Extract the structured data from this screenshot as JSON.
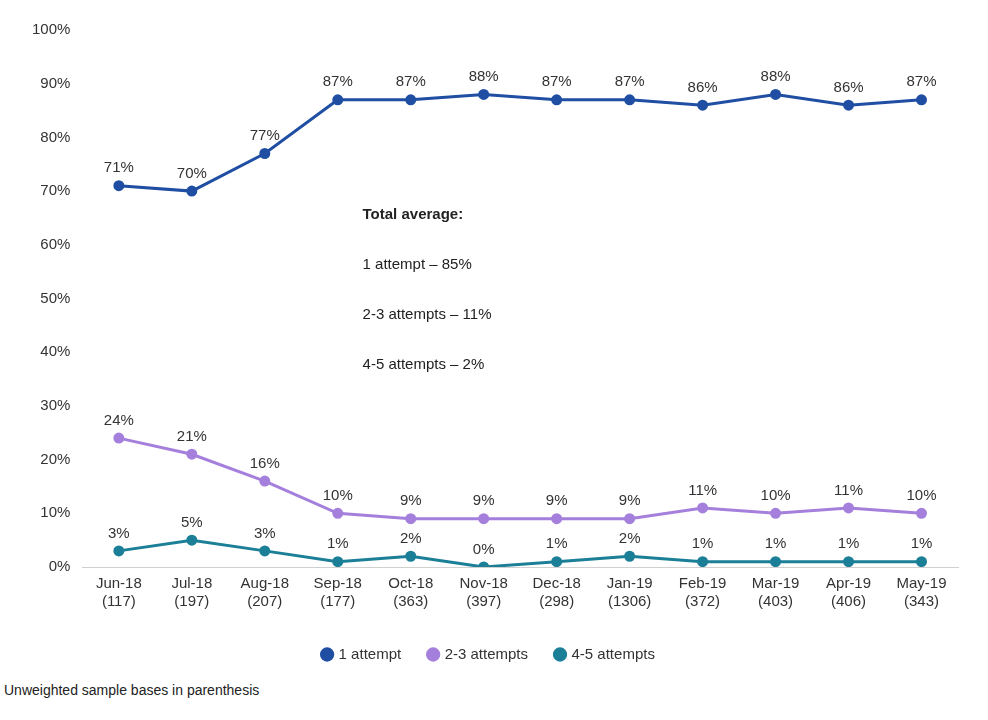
{
  "chart_data": {
    "type": "line",
    "categories": [
      [
        "Jun-18",
        "(117)"
      ],
      [
        "Jul-18",
        "(197)"
      ],
      [
        "Aug-18",
        "(207)"
      ],
      [
        "Sep-18",
        "(177)"
      ],
      [
        "Oct-18",
        "(363)"
      ],
      [
        "Nov-18",
        "(397)"
      ],
      [
        "Dec-18",
        "(298)"
      ],
      [
        "Jan-19",
        "(1306)"
      ],
      [
        "Feb-19",
        "(372)"
      ],
      [
        "Mar-19",
        "(403)"
      ],
      [
        "Apr-19",
        "(406)"
      ],
      [
        "May-19",
        "(343)"
      ]
    ],
    "series": [
      {
        "name": "1 attempt",
        "color": "#1f4ea3",
        "marker": "circle",
        "values": [
          71,
          70,
          77,
          87,
          87,
          88,
          87,
          87,
          86,
          88,
          86,
          87
        ],
        "value_labels": [
          "71%",
          "70%",
          "77%",
          "87%",
          "87%",
          "88%",
          "87%",
          "87%",
          "86%",
          "88%",
          "86%",
          "87%"
        ]
      },
      {
        "name": "2-3 attempts",
        "color": "#a57fdc",
        "marker": "circle",
        "values": [
          24,
          21,
          16,
          10,
          9,
          9,
          9,
          9,
          11,
          10,
          11,
          10
        ],
        "value_labels": [
          "24%",
          "21%",
          "16%",
          "10%",
          "9%",
          "9%",
          "9%",
          "9%",
          "11%",
          "10%",
          "11%",
          "10%"
        ]
      },
      {
        "name": "4-5 attempts",
        "color": "#1b7f97",
        "marker": "circle",
        "values": [
          3,
          5,
          3,
          1,
          2,
          0,
          1,
          2,
          1,
          1,
          1,
          1
        ],
        "value_labels": [
          "3%",
          "5%",
          "3%",
          "1%",
          "2%",
          "0%",
          "1%",
          "2%",
          "1%",
          "1%",
          "1%",
          "1%"
        ]
      }
    ],
    "ylim": [
      0,
      100
    ],
    "yticks": [
      {
        "value": 0,
        "label": "0%"
      },
      {
        "value": 10,
        "label": "10%"
      },
      {
        "value": 20,
        "label": "20%"
      },
      {
        "value": 30,
        "label": "30%"
      },
      {
        "value": 40,
        "label": "40%"
      },
      {
        "value": 50,
        "label": "50%"
      },
      {
        "value": 60,
        "label": "60%"
      },
      {
        "value": 70,
        "label": "70%"
      },
      {
        "value": 80,
        "label": "80%"
      },
      {
        "value": 90,
        "label": "90%"
      },
      {
        "value": 100,
        "label": "100%"
      }
    ],
    "grid": false,
    "legend": "bottom",
    "data_labels": true,
    "annotations": [
      "Total average:",
      "1 attempt – 85%",
      "2-3 attempts – 11%",
      "4-5 attempts – 2%"
    ],
    "footnote": "Unweighted sample bases in parenthesis"
  }
}
